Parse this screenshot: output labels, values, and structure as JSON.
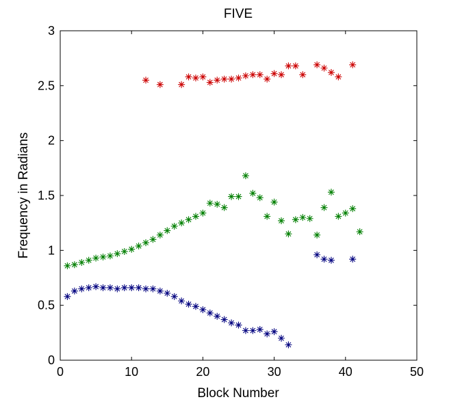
{
  "chart_data": {
    "type": "scatter",
    "title": "FIVE",
    "xlabel": "Block Number",
    "ylabel": "Frequency in Radians",
    "xlim": [
      0,
      50
    ],
    "ylim": [
      0,
      3
    ],
    "xticks": [
      "0",
      "10",
      "20",
      "30",
      "40",
      "50"
    ],
    "yticks": [
      "0",
      "0.5",
      "1",
      "1.5",
      "2",
      "2.5",
      "3"
    ],
    "grid": false,
    "marker": "asterisk",
    "series": [
      {
        "color": "#cc0000",
        "points": [
          [
            12,
            2.55
          ],
          [
            14,
            2.51
          ],
          [
            17,
            2.51
          ],
          [
            18,
            2.58
          ],
          [
            19,
            2.57
          ],
          [
            20,
            2.58
          ],
          [
            21,
            2.53
          ],
          [
            22,
            2.55
          ],
          [
            23,
            2.56
          ],
          [
            24,
            2.56
          ],
          [
            25,
            2.57
          ],
          [
            26,
            2.59
          ],
          [
            27,
            2.6
          ],
          [
            28,
            2.6
          ],
          [
            29,
            2.56
          ],
          [
            30,
            2.61
          ],
          [
            31,
            2.6
          ],
          [
            32,
            2.68
          ],
          [
            33,
            2.68
          ],
          [
            34,
            2.6
          ],
          [
            36,
            2.69
          ],
          [
            37,
            2.66
          ],
          [
            38,
            2.62
          ],
          [
            39,
            2.58
          ],
          [
            41,
            2.69
          ]
        ]
      },
      {
        "color": "#007f00",
        "points": [
          [
            1,
            0.86
          ],
          [
            2,
            0.87
          ],
          [
            3,
            0.89
          ],
          [
            4,
            0.91
          ],
          [
            5,
            0.93
          ],
          [
            6,
            0.94
          ],
          [
            7,
            0.95
          ],
          [
            8,
            0.97
          ],
          [
            9,
            0.99
          ],
          [
            10,
            1.01
          ],
          [
            11,
            1.04
          ],
          [
            12,
            1.07
          ],
          [
            13,
            1.1
          ],
          [
            14,
            1.14
          ],
          [
            15,
            1.18
          ],
          [
            16,
            1.22
          ],
          [
            17,
            1.25
          ],
          [
            18,
            1.28
          ],
          [
            19,
            1.31
          ],
          [
            20,
            1.34
          ],
          [
            21,
            1.43
          ],
          [
            22,
            1.42
          ],
          [
            23,
            1.39
          ],
          [
            24,
            1.49
          ],
          [
            25,
            1.49
          ],
          [
            26,
            1.68
          ],
          [
            27,
            1.52
          ],
          [
            28,
            1.48
          ],
          [
            29,
            1.31
          ],
          [
            30,
            1.44
          ],
          [
            31,
            1.27
          ],
          [
            32,
            1.15
          ],
          [
            33,
            1.28
          ],
          [
            34,
            1.3
          ],
          [
            35,
            1.29
          ],
          [
            36,
            1.14
          ],
          [
            37,
            1.39
          ],
          [
            38,
            1.53
          ],
          [
            39,
            1.31
          ],
          [
            40,
            1.34
          ],
          [
            41,
            1.38
          ],
          [
            42,
            1.17
          ]
        ]
      },
      {
        "color": "#00007f",
        "points": [
          [
            1,
            0.58
          ],
          [
            2,
            0.63
          ],
          [
            3,
            0.65
          ],
          [
            4,
            0.66
          ],
          [
            5,
            0.67
          ],
          [
            6,
            0.66
          ],
          [
            7,
            0.66
          ],
          [
            8,
            0.65
          ],
          [
            9,
            0.66
          ],
          [
            10,
            0.66
          ],
          [
            11,
            0.66
          ],
          [
            12,
            0.65
          ],
          [
            13,
            0.65
          ],
          [
            14,
            0.63
          ],
          [
            15,
            0.61
          ],
          [
            16,
            0.58
          ],
          [
            17,
            0.54
          ],
          [
            18,
            0.51
          ],
          [
            19,
            0.49
          ],
          [
            20,
            0.46
          ],
          [
            21,
            0.43
          ],
          [
            22,
            0.4
          ],
          [
            23,
            0.37
          ],
          [
            24,
            0.34
          ],
          [
            25,
            0.32
          ],
          [
            26,
            0.27
          ],
          [
            27,
            0.27
          ],
          [
            28,
            0.28
          ],
          [
            29,
            0.24
          ],
          [
            30,
            0.26
          ],
          [
            31,
            0.2
          ],
          [
            32,
            0.14
          ],
          [
            36,
            0.96
          ],
          [
            37,
            0.92
          ],
          [
            38,
            0.91
          ],
          [
            41,
            0.92
          ]
        ]
      }
    ]
  }
}
